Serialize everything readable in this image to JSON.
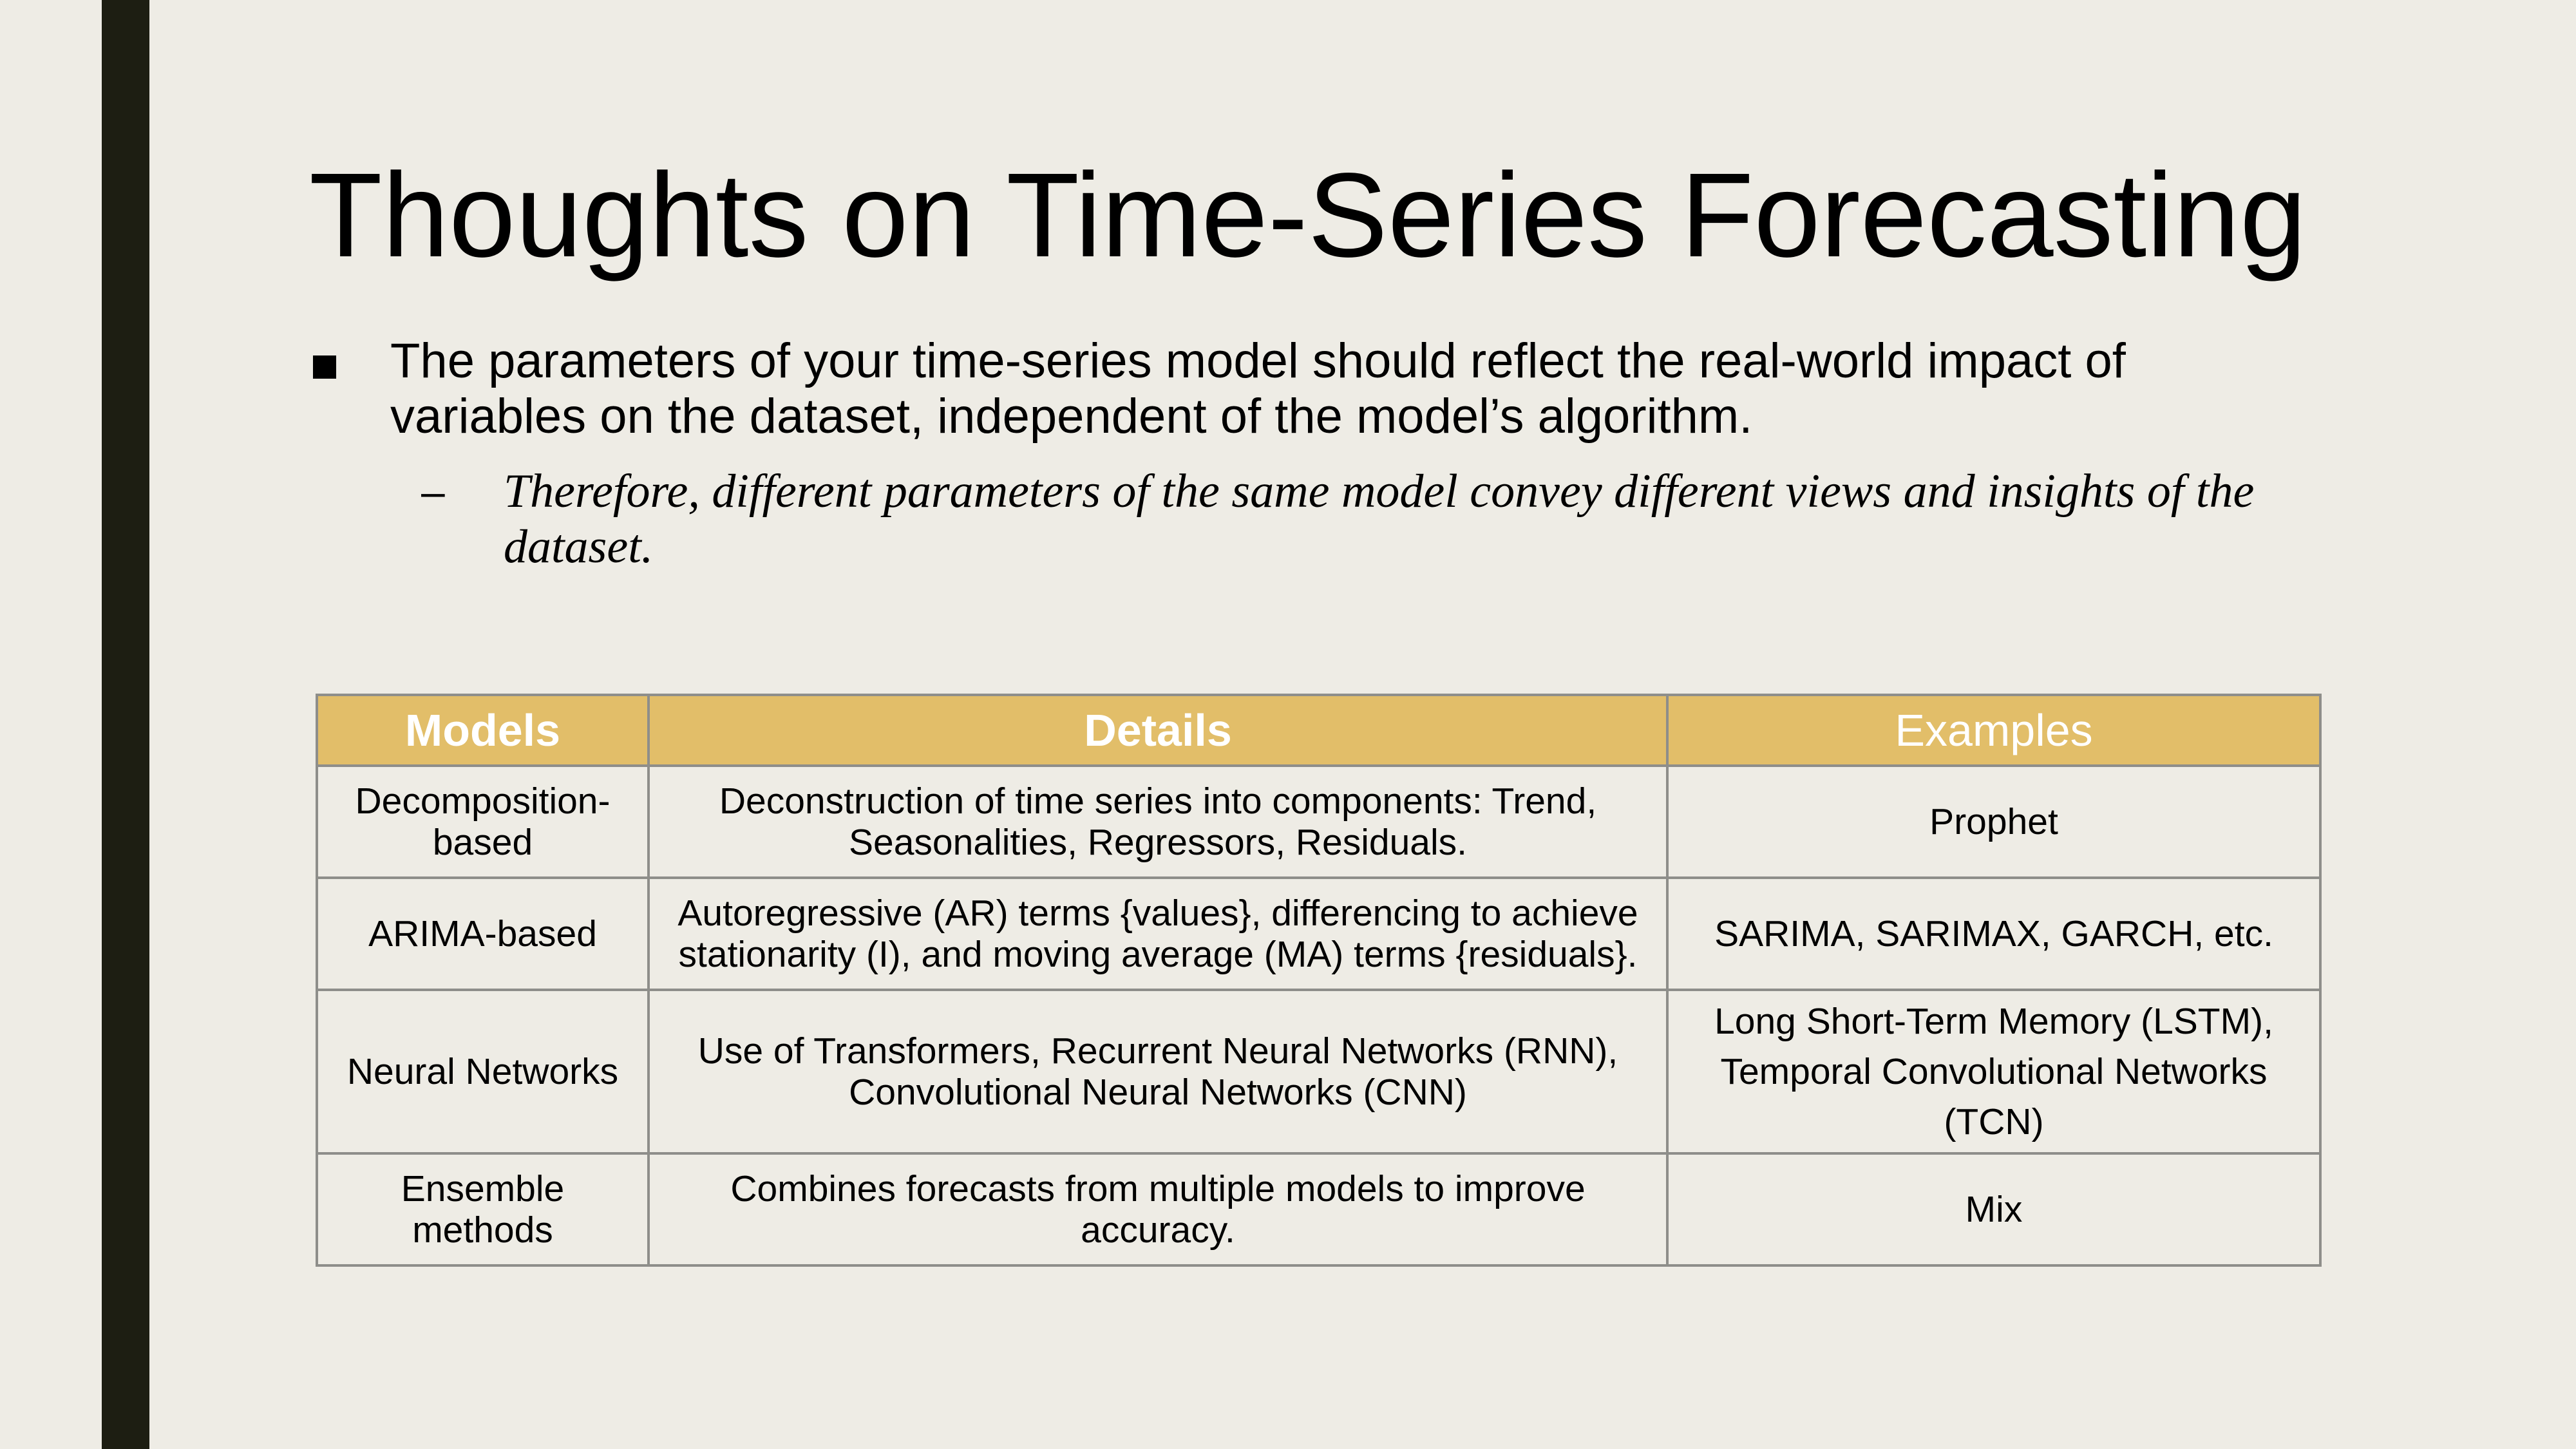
{
  "slide": {
    "title": "Thoughts on Time-Series Forecasting",
    "bullet": "The parameters of your time-series model should reflect the real-world impact of variables on the dataset, independent of the model’s algorithm.",
    "sub_bullet_marker": "–",
    "sub_bullet": "Therefore, different parameters of the same model convey different views and insights of the dataset."
  },
  "table": {
    "headers": [
      "Models",
      "Details",
      "Examples"
    ],
    "rows": [
      {
        "model": "Decomposition-based",
        "details": "Deconstruction of time series into components: Trend, Seasonalities, Regressors, Residuals.",
        "examples": "Prophet"
      },
      {
        "model": "ARIMA-based",
        "details": "Autoregressive (AR) terms {values}, differencing to achieve stationarity (I), and moving average (MA) terms {residuals}.",
        "examples": "SARIMA, SARIMAX, GARCH, etc."
      },
      {
        "model": "Neural Networks",
        "details": "Use of Transformers, Recurrent Neural Networks (RNN), Convolutional Neural Networks (CNN)",
        "examples": "Long Short-Term Memory (LSTM), Temporal Convolutional Networks (TCN)"
      },
      {
        "model": "Ensemble methods",
        "details": "Combines forecasts from multiple models to improve accuracy.",
        "examples": "Mix"
      }
    ]
  },
  "colors": {
    "background": "#EEECE5",
    "side_bar": "#1D1E12",
    "header_fill": "#E2BE69",
    "header_text": "#FFFFFF",
    "border": "#8E8E8A"
  }
}
